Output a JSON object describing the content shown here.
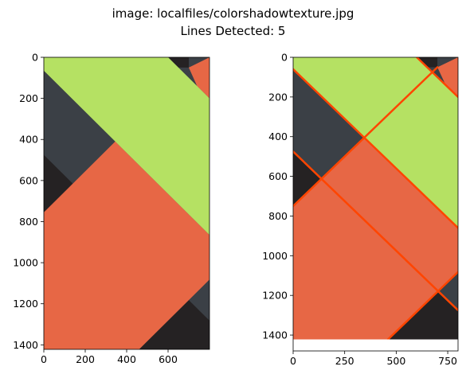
{
  "figure": {
    "title_line1": "image: localfiles/colorshadowtexture.jpg",
    "title_line2": "Lines Detected: 5"
  },
  "colors": {
    "green": "#b5e163",
    "orange": "#e76745",
    "dark_gray": "#3b4046",
    "near_black": "#252223",
    "line": "#ff4500"
  },
  "chart_data": [
    {
      "type": "image",
      "title": "",
      "image_size": [
        800,
        1422
      ],
      "xlim": [
        0,
        800
      ],
      "ylim": [
        1422,
        0
      ],
      "x_ticks": [
        0,
        200,
        400,
        600
      ],
      "y_ticks": [
        0,
        200,
        400,
        600,
        800,
        1000,
        1200,
        1400
      ]
    },
    {
      "type": "image-with-lines",
      "title": "",
      "image_size": [
        800,
        1422
      ],
      "xlim": [
        0,
        800
      ],
      "ylim": [
        1480,
        0
      ],
      "x_ticks": [
        0,
        250,
        500,
        750
      ],
      "y_ticks": [
        0,
        200,
        400,
        600,
        800,
        1000,
        1200,
        1400
      ],
      "lines_detected": 5,
      "lines": [
        {
          "x1": 0,
          "y1": 60,
          "x2": 800,
          "y2": 860
        },
        {
          "x1": 0,
          "y1": 750,
          "x2": 700,
          "y2": 50
        },
        {
          "x1": 0,
          "y1": 475,
          "x2": 800,
          "y2": 1275
        },
        {
          "x1": 460,
          "y1": 1422,
          "x2": 800,
          "y2": 1082
        },
        {
          "x1": 600,
          "y1": 0,
          "x2": 800,
          "y2": 200
        }
      ]
    }
  ]
}
